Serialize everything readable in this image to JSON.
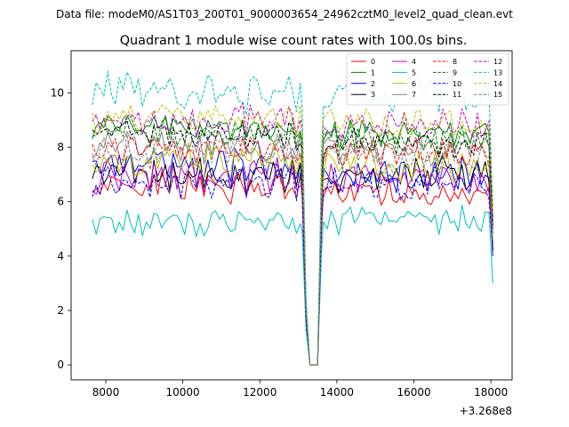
{
  "chart_data": {
    "type": "line",
    "suptitle": "Data file: modeM0/AS1T03_200T01_9000003654_24962cztM0_level2_quad_clean.evt",
    "title": "Quadrant 1 module wise count rates with 100.0s bins.",
    "xlabel": "",
    "ylabel": "",
    "x_offset_label": "+3.268e8",
    "xlim": [
      7100,
      18550
    ],
    "ylim": [
      -0.55,
      11.55
    ],
    "x_ticks": [
      8000,
      10000,
      12000,
      14000,
      16000,
      18000
    ],
    "x_tick_labels": [
      "8000",
      "10000",
      "12000",
      "14000",
      "16000",
      "18000"
    ],
    "y_ticks": [
      0,
      2,
      4,
      6,
      8,
      10
    ],
    "y_tick_labels": [
      "0",
      "2",
      "4",
      "6",
      "8",
      "10"
    ],
    "grid": false,
    "legend_position": "top-right",
    "legend_columns": 4,
    "x_segment_1": {
      "start": 7650,
      "end": 13050,
      "step": 100
    },
    "x_segment_2": {
      "start": 13650,
      "end": 17950,
      "step": 100
    },
    "x_gap": [
      13100,
      13200,
      13300,
      13400,
      13500,
      13600
    ],
    "x_final": 18050,
    "series": [
      {
        "name": "0",
        "color": "#ff0000",
        "style": "solid",
        "base1": 6.5,
        "base2": 6.3,
        "amp": 0.35,
        "end": 4.3
      },
      {
        "name": "1",
        "color": "#008000",
        "style": "solid",
        "base1": 8.7,
        "base2": 8.5,
        "amp": 0.3,
        "end": 5.3
      },
      {
        "name": "2",
        "color": "#0000ff",
        "style": "solid",
        "base1": 7.3,
        "base2": 7.0,
        "amp": 0.4,
        "end": 4.0
      },
      {
        "name": "3",
        "color": "#000000",
        "style": "solid",
        "base1": 7.0,
        "base2": 7.0,
        "amp": 0.4,
        "end": 4.2
      },
      {
        "name": "4",
        "color": "#bf00bf",
        "style": "solid",
        "base1": 6.9,
        "base2": 6.8,
        "amp": 0.4,
        "end": 4.5
      },
      {
        "name": "5",
        "color": "#00bfbf",
        "style": "solid",
        "base1": 5.2,
        "base2": 5.3,
        "amp": 0.3,
        "end": 3.0
      },
      {
        "name": "6",
        "color": "#bfbf00",
        "style": "solid",
        "base1": 7.5,
        "base2": 7.3,
        "amp": 0.4,
        "end": 4.6
      },
      {
        "name": "7",
        "color": "#808080",
        "style": "solid",
        "base1": 8.0,
        "base2": 8.0,
        "amp": 0.35,
        "end": 5.0
      },
      {
        "name": "8",
        "color": "#ff0000",
        "style": "dashed",
        "base1": 7.9,
        "base2": 7.8,
        "amp": 0.35,
        "end": 4.9
      },
      {
        "name": "9",
        "color": "#008000",
        "style": "dashed",
        "base1": 8.5,
        "base2": 8.3,
        "amp": 0.35,
        "end": 5.2
      },
      {
        "name": "10",
        "color": "#0000ff",
        "style": "dashed",
        "base1": 6.6,
        "base2": 6.6,
        "amp": 0.4,
        "end": 4.2
      },
      {
        "name": "11",
        "color": "#000000",
        "style": "dashed",
        "base1": 8.4,
        "base2": 8.2,
        "amp": 0.35,
        "end": 5.0
      },
      {
        "name": "12",
        "color": "#bf00bf",
        "style": "dashed",
        "base1": 9.0,
        "base2": 8.8,
        "amp": 0.35,
        "end": 5.5
      },
      {
        "name": "13",
        "color": "#00bfbf",
        "style": "dashed",
        "base1": 10.0,
        "base2": 10.0,
        "amp": 0.45,
        "end": 5.8
      },
      {
        "name": "14",
        "color": "#bfbf00",
        "style": "dashed",
        "base1": 9.0,
        "base2": 8.9,
        "amp": 0.35,
        "end": 5.6
      },
      {
        "name": "15",
        "color": "#808080",
        "style": "dashed",
        "base1": 7.8,
        "base2": 7.6,
        "amp": 0.4,
        "end": 4.8
      }
    ]
  }
}
